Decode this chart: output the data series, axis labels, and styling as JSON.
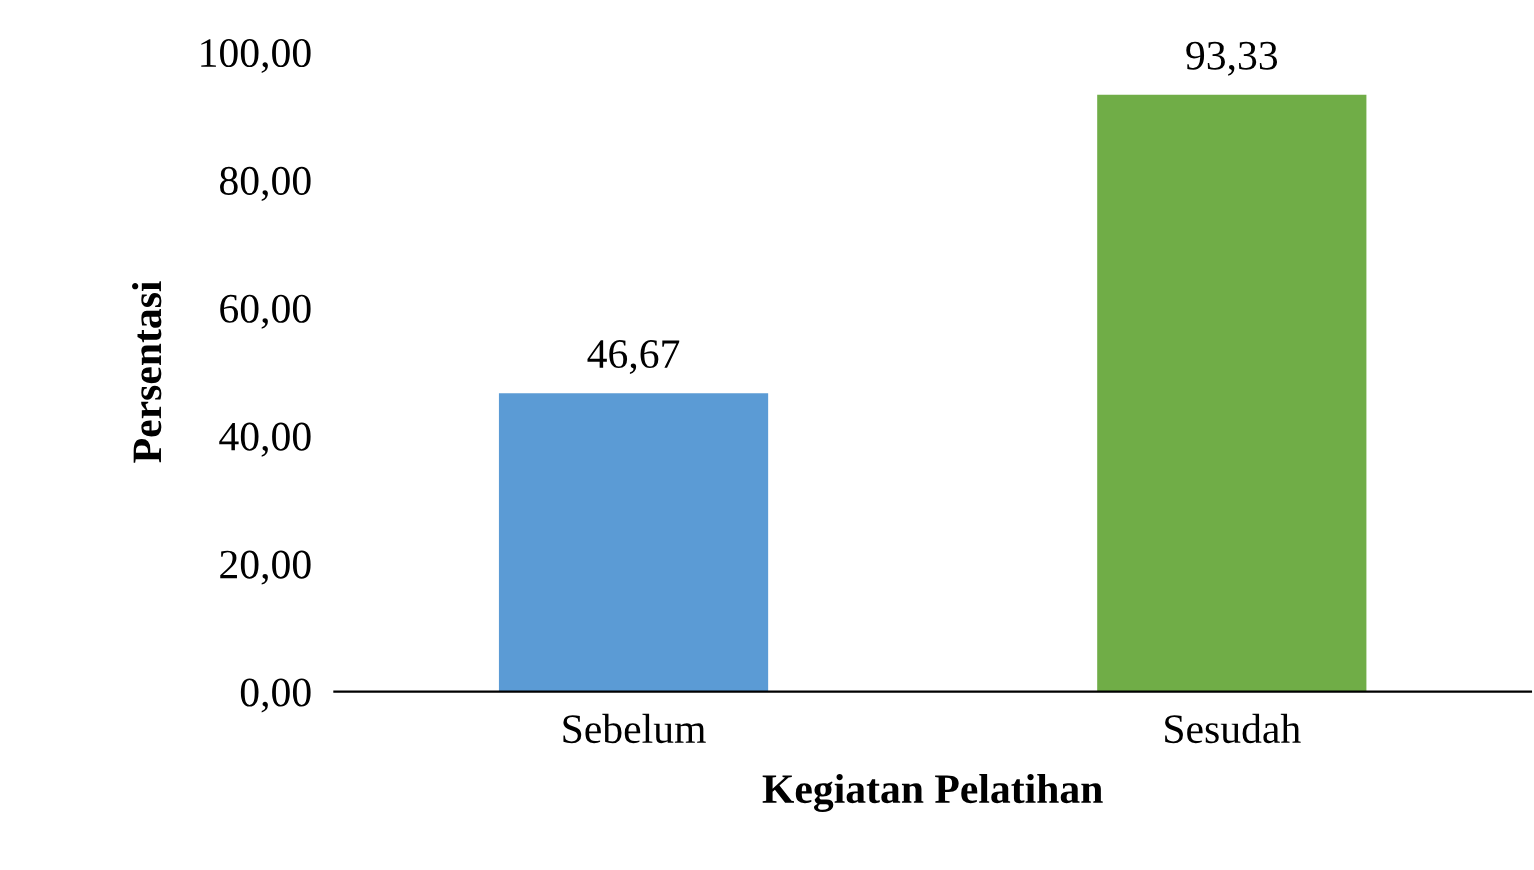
{
  "chart_data": {
    "type": "bar",
    "xlabel": "Kegiatan Pelatihan",
    "ylabel": "Persentasi",
    "categories": [
      "Sebelum",
      "Sesudah"
    ],
    "values": [
      46.67,
      93.33
    ],
    "colors": [
      "#5b9bd5",
      "#70ad47"
    ],
    "value_labels": [
      "46,67",
      "93,33"
    ],
    "ylim": [
      0,
      100
    ],
    "yticks": [
      {
        "value": 0,
        "label": "0,00"
      },
      {
        "value": 20,
        "label": "20,00"
      },
      {
        "value": 40,
        "label": "40,00"
      },
      {
        "value": 60,
        "label": "60,00"
      },
      {
        "value": 80,
        "label": "80,00"
      },
      {
        "value": 100,
        "label": "100,00"
      }
    ],
    "grid": false
  }
}
